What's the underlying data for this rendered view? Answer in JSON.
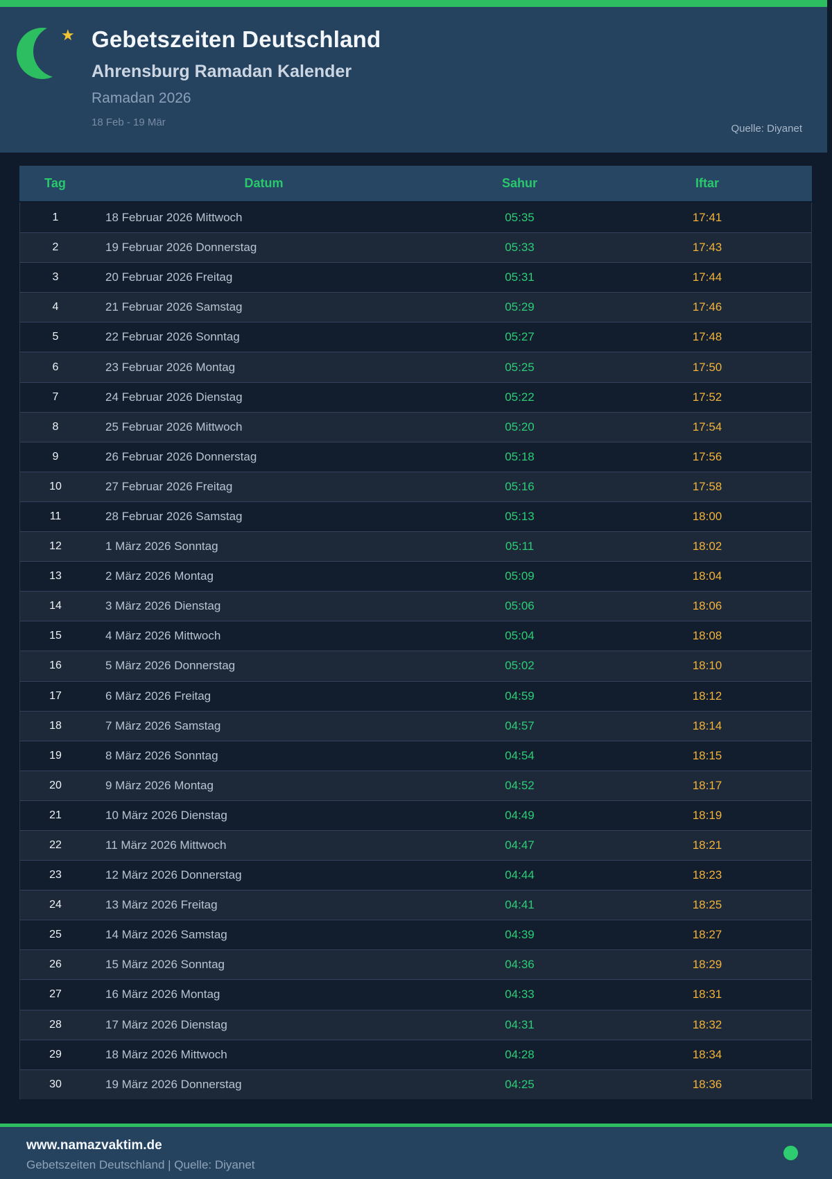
{
  "header": {
    "title": "Gebetszeiten Deutschland",
    "subtitle": "Ahrensburg Ramadan Kalender",
    "period": "Ramadan 2026",
    "date_range": "18 Feb - 19 Mär",
    "source": "Quelle: Diyanet",
    "icons": {
      "moon": "crescent-moon-icon",
      "star": "star-icon"
    }
  },
  "table": {
    "columns": [
      "Tag",
      "Datum",
      "Sahur",
      "Iftar"
    ],
    "rows": [
      [
        "1",
        "18 Februar 2026 Mittwoch",
        "05:35",
        "17:41"
      ],
      [
        "2",
        "19 Februar 2026 Donnerstag",
        "05:33",
        "17:43"
      ],
      [
        "3",
        "20 Februar 2026 Freitag",
        "05:31",
        "17:44"
      ],
      [
        "4",
        "21 Februar 2026 Samstag",
        "05:29",
        "17:46"
      ],
      [
        "5",
        "22 Februar 2026 Sonntag",
        "05:27",
        "17:48"
      ],
      [
        "6",
        "23 Februar 2026 Montag",
        "05:25",
        "17:50"
      ],
      [
        "7",
        "24 Februar 2026 Dienstag",
        "05:22",
        "17:52"
      ],
      [
        "8",
        "25 Februar 2026 Mittwoch",
        "05:20",
        "17:54"
      ],
      [
        "9",
        "26 Februar 2026 Donnerstag",
        "05:18",
        "17:56"
      ],
      [
        "10",
        "27 Februar 2026 Freitag",
        "05:16",
        "17:58"
      ],
      [
        "11",
        "28 Februar 2026 Samstag",
        "05:13",
        "18:00"
      ],
      [
        "12",
        "1 März 2026 Sonntag",
        "05:11",
        "18:02"
      ],
      [
        "13",
        "2 März 2026 Montag",
        "05:09",
        "18:04"
      ],
      [
        "14",
        "3 März 2026 Dienstag",
        "05:06",
        "18:06"
      ],
      [
        "15",
        "4 März 2026 Mittwoch",
        "05:04",
        "18:08"
      ],
      [
        "16",
        "5 März 2026 Donnerstag",
        "05:02",
        "18:10"
      ],
      [
        "17",
        "6 März 2026 Freitag",
        "04:59",
        "18:12"
      ],
      [
        "18",
        "7 März 2026 Samstag",
        "04:57",
        "18:14"
      ],
      [
        "19",
        "8 März 2026 Sonntag",
        "04:54",
        "18:15"
      ],
      [
        "20",
        "9 März 2026 Montag",
        "04:52",
        "18:17"
      ],
      [
        "21",
        "10 März 2026 Dienstag",
        "04:49",
        "18:19"
      ],
      [
        "22",
        "11 März 2026 Mittwoch",
        "04:47",
        "18:21"
      ],
      [
        "23",
        "12 März 2026 Donnerstag",
        "04:44",
        "18:23"
      ],
      [
        "24",
        "13 März 2026 Freitag",
        "04:41",
        "18:25"
      ],
      [
        "25",
        "14 März 2026 Samstag",
        "04:39",
        "18:27"
      ],
      [
        "26",
        "15 März 2026 Sonntag",
        "04:36",
        "18:29"
      ],
      [
        "27",
        "16 März 2026 Montag",
        "04:33",
        "18:31"
      ],
      [
        "28",
        "17 März 2026 Dienstag",
        "04:31",
        "18:32"
      ],
      [
        "29",
        "18 März 2026 Mittwoch",
        "04:28",
        "18:34"
      ],
      [
        "30",
        "19 März 2026 Donnerstag",
        "04:25",
        "18:36"
      ]
    ]
  },
  "footer": {
    "website": "www.namazvaktim.de",
    "tagline": "Gebetszeiten Deutschland | Quelle: Diyanet",
    "status_icon": "green-dot-icon"
  },
  "colors": {
    "accent_green": "#2CBE60",
    "text_green": "#2BCE77",
    "iftar_amber": "#F2B339",
    "header_bg": "#25425F",
    "page_bg": "#0F1A2A",
    "row_odd": "#121D2D",
    "row_even": "#1D2939",
    "star_gold": "#F2C335"
  }
}
